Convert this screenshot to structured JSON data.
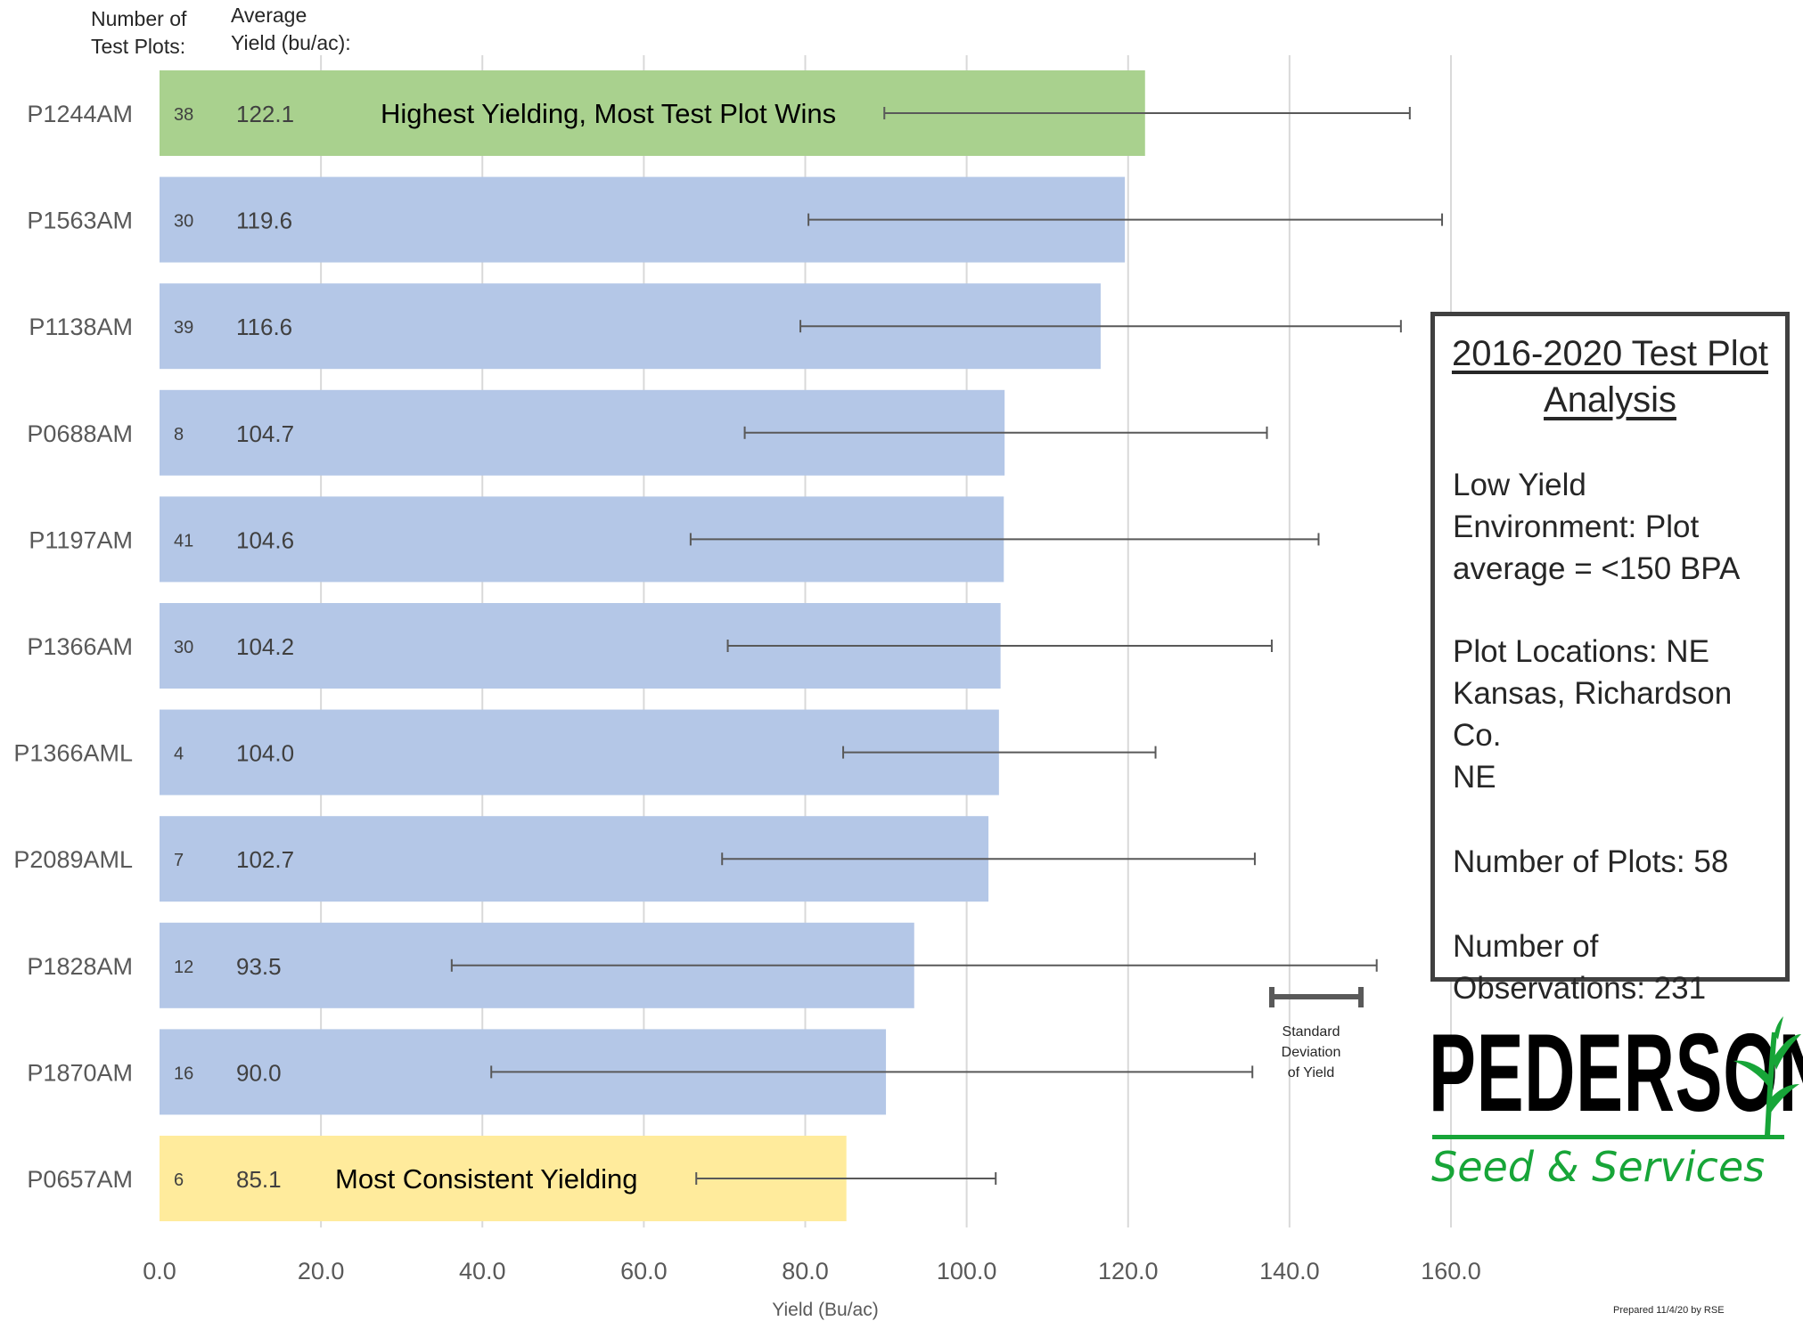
{
  "header": {
    "count_label": "Number of\nTest Plots:",
    "avg_label": "Average\nYield (bu/ac):"
  },
  "chart_data": {
    "type": "bar",
    "orientation": "horizontal",
    "xlabel": "Yield (Bu/ac)",
    "xlim": [
      0,
      160
    ],
    "xticks": [
      "0.0",
      "20.0",
      "40.0",
      "60.0",
      "80.0",
      "100.0",
      "120.0",
      "140.0",
      "160.0"
    ],
    "grid": true,
    "categories": [
      "P1244AM",
      "P1563AM",
      "P1138AM",
      "P0688AM",
      "P1197AM",
      "P1366AM",
      "P1366AML",
      "P2089AML",
      "P1828AM",
      "P1870AM",
      "P0657AM"
    ],
    "values": [
      122.1,
      119.6,
      116.6,
      104.7,
      104.6,
      104.2,
      104.0,
      102.7,
      93.5,
      90.0,
      85.1
    ],
    "value_labels": [
      "122.1",
      "119.6",
      "116.6",
      "104.7",
      "104.6",
      "104.2",
      "104.0",
      "102.7",
      "93.5",
      "90.0",
      "85.1"
    ],
    "test_plot_counts": [
      "38",
      "30",
      "39",
      "8",
      "41",
      "30",
      "4",
      "7",
      "12",
      "16",
      "6"
    ],
    "error_bars": [
      [
        89.8,
        154.9
      ],
      [
        80.4,
        158.9
      ],
      [
        79.4,
        153.8
      ],
      [
        72.5,
        137.2
      ],
      [
        65.8,
        143.6
      ],
      [
        70.4,
        137.8
      ],
      [
        84.7,
        123.4
      ],
      [
        69.7,
        135.7
      ],
      [
        36.2,
        150.8
      ],
      [
        41.1,
        135.4
      ],
      [
        66.5,
        103.6
      ]
    ],
    "error_bar_meaning": "Standard Deviation of Yield",
    "bar_colors": [
      "#a9d18e",
      "#b4c7e7",
      "#b4c7e7",
      "#b4c7e7",
      "#b4c7e7",
      "#b4c7e7",
      "#b4c7e7",
      "#b4c7e7",
      "#b4c7e7",
      "#b4c7e7",
      "#ffeb9c"
    ],
    "annotations": [
      {
        "bar": 0,
        "text": "Highest Yielding, Most Test Plot Wins"
      },
      {
        "bar": 10,
        "text": "Most Consistent Yielding"
      }
    ]
  },
  "info_box": {
    "title": "2016-2020 Test Plot Analysis",
    "lines": [
      "Low Yield\nEnvironment: Plot\naverage = <150 BPA",
      "Plot Locations: NE\nKansas, Richardson Co.\nNE",
      "Number of Plots: 58",
      "Number of\nObservations: 231"
    ]
  },
  "legend": {
    "sd_label": "Standard\nDeviation\nof Yield"
  },
  "logo": {
    "wordmark": "PEDERSON",
    "subtitle": "Seed & Services",
    "accent_color": "#17a538"
  },
  "footer": {
    "prepared": "Prepared 11/4/20 by RSE"
  }
}
